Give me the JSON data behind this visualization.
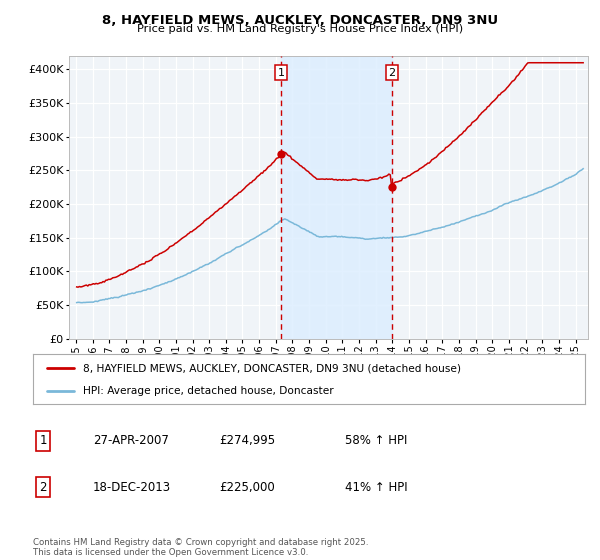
{
  "title1": "8, HAYFIELD MEWS, AUCKLEY, DONCASTER, DN9 3NU",
  "title2": "Price paid vs. HM Land Registry's House Price Index (HPI)",
  "legend_line1": "8, HAYFIELD MEWS, AUCKLEY, DONCASTER, DN9 3NU (detached house)",
  "legend_line2": "HPI: Average price, detached house, Doncaster",
  "marker1_date": "27-APR-2007",
  "marker1_price": 274995,
  "marker1_label": "58% ↑ HPI",
  "marker2_date": "18-DEC-2013",
  "marker2_price": 225000,
  "marker2_label": "41% ↑ HPI",
  "note": "Contains HM Land Registry data © Crown copyright and database right 2025.\nThis data is licensed under the Open Government Licence v3.0.",
  "hpi_color": "#7ab8d9",
  "house_color": "#cc0000",
  "marker_color": "#cc0000",
  "shading_color": "#ddeeff",
  "vline_color": "#cc0000",
  "ylim_max": 420000,
  "plot_bg": "#f0f4f8",
  "fig_bg": "#ffffff"
}
